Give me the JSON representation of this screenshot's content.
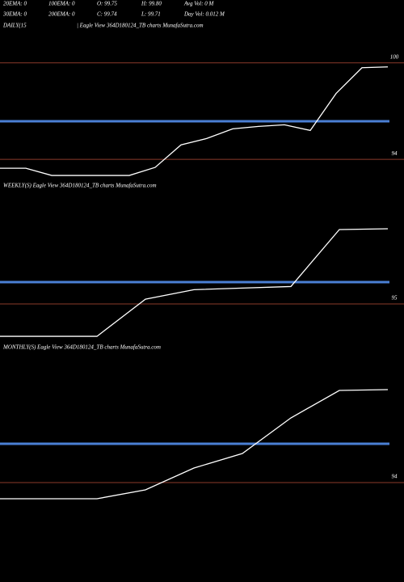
{
  "header": {
    "rows": [
      [
        "20EMA: 0",
        "100EMA: 0",
        "O: 99.75",
        "H: 99.80",
        "Avg Vol: 0  M"
      ],
      [
        "30EMA: 0",
        "200EMA: 0",
        "C: 99.74",
        "L: 99.71",
        "Day Vol: 0.012  M"
      ]
    ]
  },
  "chart_data": [
    {
      "type": "line",
      "title": "DAILY(15",
      "subtitle": "| Eagle  View  364D180124_TB charts MunafaSutra.com",
      "values": [
        93.45,
        93.45,
        93.0,
        93.0,
        93.0,
        93.0,
        93.5,
        94.9,
        95.3,
        95.9,
        96.05,
        96.15,
        95.8,
        98.1,
        99.7,
        99.75
      ],
      "color": "#ffffff",
      "reference_line": 96.37,
      "reference_color": "#4a7fd4",
      "grid_color": "#8b3a2a",
      "ylim": [
        92.6,
        101.9
      ],
      "yticks": [
        100,
        94
      ]
    },
    {
      "type": "line",
      "title": "WEEKLY(S) Eagle  View  364D180124_TB charts MunafaSutra.com",
      "values": [
        92.95,
        92.95,
        92.95,
        95.3,
        95.9,
        96.0,
        96.1,
        99.7,
        99.75
      ],
      "color": "#ffffff",
      "reference_line": 96.38,
      "reference_color": "#4a7fd4",
      "grid_color": "#8b3a2a",
      "ylim": [
        92.75,
        102.1
      ],
      "yticks": [
        95
      ]
    },
    {
      "type": "line",
      "title": "MONTHLY(S) Eagle  View  364D180124_TB charts MunafaSutra.com",
      "values": [
        93.0,
        93.0,
        93.0,
        93.55,
        94.9,
        95.8,
        98.0,
        99.7,
        99.75
      ],
      "color": "#ffffff",
      "reference_line": 96.4,
      "reference_color": "#4a7fd4",
      "grid_color": "#8b3a2a",
      "ylim": [
        92.85,
        102.0
      ],
      "yticks": [
        94
      ]
    }
  ]
}
